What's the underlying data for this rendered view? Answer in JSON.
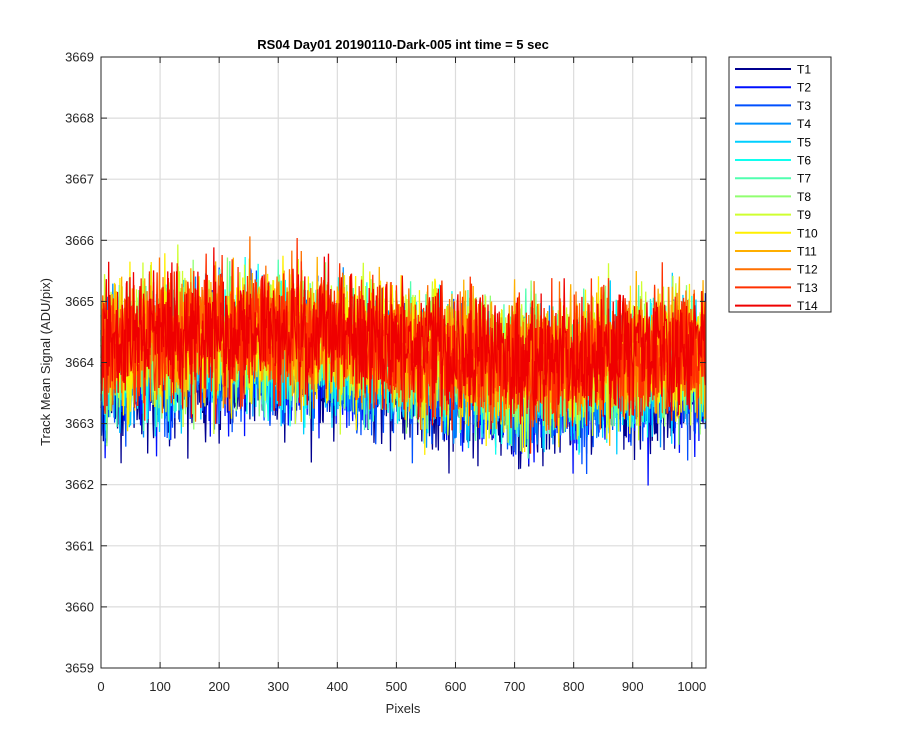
{
  "chart_data": {
    "type": "line",
    "title": "RS04 Day01 20190110-Dark-005 int time = 5 sec",
    "xlabel": "Pixels",
    "ylabel": "Track Mean Signal (ADU/pix)",
    "xlim": [
      0,
      1024
    ],
    "ylim": [
      3659,
      3669
    ],
    "xticks": [
      0,
      100,
      200,
      300,
      400,
      500,
      600,
      700,
      800,
      900,
      1000
    ],
    "yticks": [
      3659,
      3660,
      3661,
      3662,
      3663,
      3664,
      3665,
      3666,
      3667,
      3668,
      3669
    ],
    "grid": true,
    "legend_position": "outside-top-right",
    "samples_per_series": 1024,
    "series": [
      {
        "name": "T1",
        "color": "#00008F",
        "mean": 3663.65,
        "std": 0.85
      },
      {
        "name": "T2",
        "color": "#0010FF",
        "mean": 3663.75,
        "std": 0.85
      },
      {
        "name": "T3",
        "color": "#0050FF",
        "mean": 3663.85,
        "std": 0.85
      },
      {
        "name": "T4",
        "color": "#0090FF",
        "mean": 3663.95,
        "std": 0.85
      },
      {
        "name": "T5",
        "color": "#00CFFF",
        "mean": 3664.0,
        "std": 0.85
      },
      {
        "name": "T6",
        "color": "#10FFEF",
        "mean": 3664.05,
        "std": 0.85
      },
      {
        "name": "T7",
        "color": "#50FFAF",
        "mean": 3664.1,
        "std": 0.85
      },
      {
        "name": "T8",
        "color": "#90FF70",
        "mean": 3664.15,
        "std": 0.85
      },
      {
        "name": "T9",
        "color": "#CFFF30",
        "mean": 3664.2,
        "std": 0.85
      },
      {
        "name": "T10",
        "color": "#FFEF00",
        "mean": 3664.2,
        "std": 0.85
      },
      {
        "name": "T11",
        "color": "#FFAF00",
        "mean": 3664.25,
        "std": 0.85
      },
      {
        "name": "T12",
        "color": "#FF7000",
        "mean": 3664.25,
        "std": 0.85
      },
      {
        "name": "T13",
        "color": "#FF3000",
        "mean": 3664.25,
        "std": 0.85
      },
      {
        "name": "T14",
        "color": "#EF0000",
        "mean": 3664.3,
        "std": 0.85
      }
    ]
  }
}
